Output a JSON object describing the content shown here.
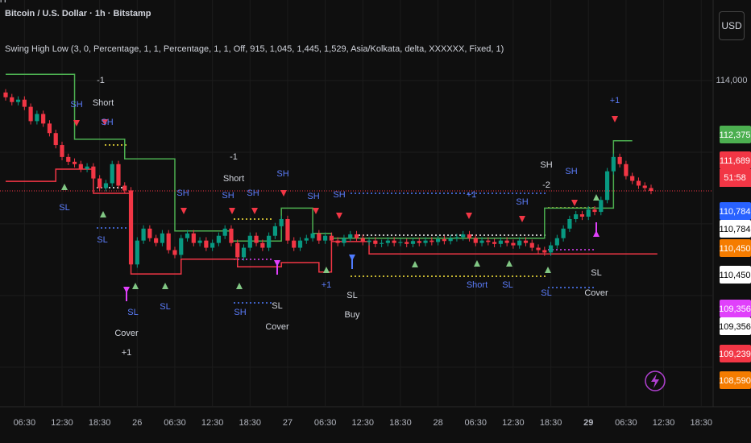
{
  "chart_data": {
    "type": "candlestick",
    "title": "Bitcoin / U.S. Dollar · 1h · Bitstamp",
    "indicator": "Swing High Low (3, 0, Percentage, 1, 1, Percentage, 1, 1, Off, 915, 1,045, 1,445, 1,529, Asia/Kolkata, delta, XXXXXX, Fixed, 1)",
    "currency": "USD",
    "up_color": "#089981",
    "down_color": "#f23645",
    "open": [
      113750,
      113650,
      113550,
      113600,
      113450,
      113150,
      113300,
      113100,
      112900,
      112650,
      112400,
      112300,
      112250,
      112150,
      112200,
      111950,
      111750,
      111850,
      112250,
      111800,
      111700,
      110150,
      110650,
      110900,
      110700,
      110600,
      110800,
      110450,
      110350,
      110700,
      110800,
      110600,
      110650,
      110500,
      110600,
      110750,
      110900,
      110600,
      110300,
      110500,
      110750,
      110600,
      110500,
      110750,
      110950,
      111100,
      110650,
      110500,
      110650,
      110700,
      110800,
      110650,
      110750,
      110650,
      110600,
      110700,
      110780,
      110700,
      110620,
      110650,
      110580,
      110600,
      110650,
      110600,
      110620,
      110580,
      110640,
      110600,
      110650,
      110620,
      110680,
      110640,
      110700,
      110720,
      110780,
      110700,
      110600,
      110650,
      110620,
      110580,
      110650,
      110600,
      110550,
      110650,
      110600,
      110500,
      110450,
      110400,
      110550,
      110700,
      110900,
      111100,
      111200,
      111150,
      111300,
      111250,
      111500,
      112100,
      112400,
      112250,
      112000,
      111900,
      111800,
      111750
    ],
    "high": [
      113820,
      113720,
      113670,
      113670,
      113520,
      113370,
      113370,
      113170,
      112970,
      112720,
      112470,
      112370,
      112320,
      112270,
      112270,
      112020,
      111920,
      112320,
      112320,
      111870,
      111770,
      110720,
      110970,
      110970,
      110770,
      110870,
      110870,
      110520,
      110770,
      110870,
      110870,
      110720,
      110720,
      110670,
      110820,
      110970,
      110970,
      110670,
      110570,
      110820,
      110820,
      110670,
      110820,
      111020,
      111170,
      111170,
      110720,
      110720,
      110770,
      110870,
      110870,
      110820,
      110820,
      110720,
      110770,
      110850,
      110850,
      110770,
      110720,
      110720,
      110670,
      110720,
      110720,
      110690,
      110690,
      110710,
      110710,
      110720,
      110720,
      110750,
      110750,
      110770,
      110790,
      110850,
      110850,
      110770,
      110720,
      110720,
      110690,
      110720,
      110720,
      110670,
      110720,
      110720,
      110670,
      110570,
      110520,
      110620,
      110770,
      110970,
      111170,
      111270,
      111270,
      111370,
      111370,
      111570,
      112170,
      112470,
      112470,
      112320,
      112070,
      111970,
      111870,
      111820
    ],
    "low": [
      113580,
      113480,
      113480,
      113380,
      113080,
      113080,
      113030,
      112830,
      112580,
      112330,
      112230,
      112180,
      112080,
      112080,
      111880,
      111680,
      111680,
      111780,
      111730,
      111630,
      110080,
      110080,
      110580,
      110630,
      110530,
      110530,
      110380,
      110280,
      110280,
      110630,
      110530,
      110530,
      110430,
      110430,
      110530,
      110680,
      110530,
      110230,
      110230,
      110430,
      110530,
      110430,
      110430,
      110680,
      110880,
      110580,
      110430,
      110430,
      110580,
      110630,
      110580,
      110580,
      110580,
      110530,
      110530,
      110630,
      110630,
      110550,
      110550,
      110510,
      110510,
      110530,
      110530,
      110530,
      110510,
      110510,
      110530,
      110530,
      110550,
      110550,
      110570,
      110570,
      110630,
      110650,
      110630,
      110530,
      110530,
      110550,
      110510,
      110510,
      110530,
      110480,
      110480,
      110530,
      110430,
      110380,
      110330,
      110330,
      110480,
      110630,
      110830,
      111030,
      111080,
      111080,
      111180,
      111180,
      111430,
      112030,
      112180,
      111930,
      111830,
      111730,
      111680,
      111620
    ],
    "close": [
      113650,
      113550,
      113600,
      113450,
      113150,
      113300,
      113100,
      112900,
      112650,
      112400,
      112300,
      112250,
      112150,
      112200,
      111950,
      111750,
      111850,
      112250,
      111800,
      111700,
      110150,
      110650,
      110900,
      110700,
      110600,
      110800,
      110450,
      110350,
      110700,
      110800,
      110600,
      110650,
      110500,
      110600,
      110750,
      110900,
      110600,
      110300,
      110500,
      110750,
      110600,
      110500,
      110750,
      110950,
      111100,
      110650,
      110500,
      110650,
      110700,
      110800,
      110650,
      110750,
      110650,
      110600,
      110700,
      110780,
      110700,
      110620,
      110650,
      110580,
      110600,
      110650,
      110600,
      110620,
      110580,
      110640,
      110600,
      110650,
      110620,
      110680,
      110640,
      110700,
      110720,
      110780,
      110700,
      110600,
      110650,
      110620,
      110580,
      110650,
      110600,
      110550,
      110650,
      110600,
      110500,
      110450,
      110400,
      110550,
      110700,
      110900,
      111100,
      111200,
      111150,
      111300,
      111250,
      111500,
      112100,
      112400,
      112250,
      112000,
      111900,
      111800,
      111750,
      111689
    ],
    "series": [
      {
        "color": "#4caf50",
        "x": [
          0,
          11,
          19,
          27,
          36,
          44,
          49,
          52,
          86,
          97,
          100
        ],
        "values": [
          114130,
          112770,
          112360,
          110850,
          110640,
          111330,
          110800,
          110700,
          111330,
          112740,
          112740
        ]
      },
      {
        "color": "#f23645",
        "x": [
          0,
          8,
          14,
          20,
          28,
          37,
          44,
          50,
          52,
          58,
          104
        ],
        "values": [
          111890,
          112145,
          111640,
          109950,
          110260,
          110100,
          110190,
          109990,
          110630,
          110370,
          110370
        ]
      }
    ],
    "xlim": [
      -0.9,
      112.9
    ],
    "ylim": [
      107255,
      115686
    ],
    "xticks": [
      {
        "value": 3,
        "label": "06:30"
      },
      {
        "value": 9,
        "label": "12:30"
      },
      {
        "value": 15,
        "label": "18:30"
      },
      {
        "value": 21,
        "label": "26"
      },
      {
        "value": 27,
        "label": "06:30"
      },
      {
        "value": 33,
        "label": "12:30"
      },
      {
        "value": 39,
        "label": "18:30"
      },
      {
        "value": 45,
        "label": "27"
      },
      {
        "value": 51,
        "label": "06:30"
      },
      {
        "value": 57,
        "label": "12:30"
      },
      {
        "value": 63,
        "label": "18:30"
      },
      {
        "value": 69,
        "label": "28"
      },
      {
        "value": 75,
        "label": "06:30"
      },
      {
        "value": 81,
        "label": "12:30"
      },
      {
        "value": 87,
        "label": "18:30"
      },
      {
        "value": 93,
        "label": "29"
      },
      {
        "value": 99,
        "label": "06:30"
      },
      {
        "value": 105,
        "label": "12:30"
      },
      {
        "value": 111,
        "label": "18:30"
      }
    ],
    "yticks": [
      {
        "value": 114000,
        "label": "114,000"
      }
    ],
    "grid_y": [
      112500,
      111000,
      109500,
      108000
    ],
    "grid": true,
    "price_tags": [
      {
        "value": 112375,
        "label": "112,375",
        "color": "#4caf50"
      },
      {
        "value": 111689,
        "label": "111,689",
        "color": "#f23645"
      },
      {
        "value": 110784,
        "label": "110,784",
        "color": "#2962ff"
      },
      {
        "value": 110784,
        "label": "110,784",
        "color": "#ffffff"
      },
      {
        "value": 110450,
        "label": "110,450",
        "color": "#f57c00"
      },
      {
        "value": 110450,
        "label": "110,450",
        "color": "#ffffff"
      },
      {
        "value": 109356,
        "label": "109,356",
        "color": "#e040fb"
      },
      {
        "value": 109356,
        "label": "109,356",
        "color": "#ffffff"
      },
      {
        "value": 109239,
        "label": "109,239",
        "color": "#f23645"
      },
      {
        "value": 108590,
        "label": "108,590",
        "color": "#f57c00"
      }
    ],
    "countdown": "51:58",
    "annotations": [
      "-1",
      "Short",
      "SH",
      "SH",
      "SL",
      "SL",
      "SL",
      "SL",
      "Cover",
      "+1",
      "-1",
      "Short",
      "SH",
      "SH",
      "SH",
      "SH",
      "SH",
      "SH",
      "SL",
      "Cover",
      "+1",
      "SL",
      "Buy",
      "+1",
      "SH",
      "SH",
      "SH",
      "-2",
      "Short",
      "SL",
      "SL",
      "SL",
      "Cover",
      "+1",
      "SH"
    ]
  }
}
